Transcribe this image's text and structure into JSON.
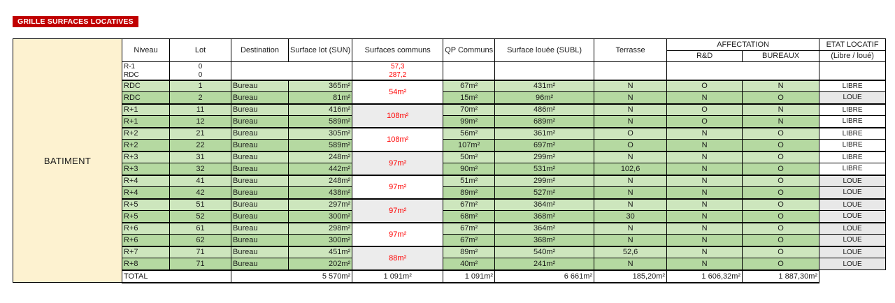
{
  "title": "GRILLE SURFACES LOCATIVES",
  "colors": {
    "accent_red": "#c00000",
    "value_red": "#ff0000",
    "row_green_light": "#cde6bd",
    "row_green_dark": "#b5d9a1",
    "batiment_beige": "#fdf2d0",
    "merged_gray": "#ececec",
    "loue_gray": "#e8e8e8",
    "border_black": "#000000"
  },
  "table": {
    "batiment_label": "BATIMENT",
    "headers": {
      "niveau": "Niveau",
      "lot": "Lot",
      "destination": "Destination",
      "surface_lot": "Surface lot\n(SUN)",
      "surfaces_communs": "Surfaces communs",
      "qp_communs": "QP\nCommuns",
      "surface_louee": "Surface louée\n(SUBL)",
      "terrasse": "Terrasse",
      "affectation": "AFFECTATION",
      "rd": "R&D",
      "bureaux": "BUREAUX",
      "etat_locatif": "ETAT LOCATIF",
      "etat_sub": "(Libre / loué)"
    },
    "pre_rows": [
      {
        "niveau": "R-1",
        "lot": "0",
        "communs": "57,3"
      },
      {
        "niveau": "RDC",
        "lot": "0",
        "communs": "287,2"
      }
    ],
    "communs_merged": [
      "54m²",
      "108m²",
      "108m²",
      "97m²",
      "97m²",
      "97m²",
      "97m²",
      "88m²"
    ],
    "rows": [
      {
        "niveau": "RDC",
        "lot": "1",
        "destination": "Bureau",
        "sun": "365m²",
        "qp": "67m²",
        "subl": "431m²",
        "terrasse": "N",
        "rd": "O",
        "bureaux": "N",
        "etat": "LIBRE"
      },
      {
        "niveau": "RDC",
        "lot": "2",
        "destination": "Bureau",
        "sun": "81m²",
        "qp": "15m²",
        "subl": "96m²",
        "terrasse": "N",
        "rd": "N",
        "bureaux": "O",
        "etat": "LOUE"
      },
      {
        "niveau": "R+1",
        "lot": "11",
        "destination": "Bureau",
        "sun": "416m²",
        "qp": "70m²",
        "subl": "486m²",
        "terrasse": "N",
        "rd": "O",
        "bureaux": "N",
        "etat": "LIBRE"
      },
      {
        "niveau": "R+1",
        "lot": "12",
        "destination": "Bureau",
        "sun": "589m²",
        "qp": "99m²",
        "subl": "689m²",
        "terrasse": "N",
        "rd": "O",
        "bureaux": "N",
        "etat": "LIBRE"
      },
      {
        "niveau": "R+2",
        "lot": "21",
        "destination": "Bureau",
        "sun": "305m²",
        "qp": "56m²",
        "subl": "361m²",
        "terrasse": "O",
        "rd": "N",
        "bureaux": "O",
        "etat": "LIBRE"
      },
      {
        "niveau": "R+2",
        "lot": "22",
        "destination": "Bureau",
        "sun": "589m²",
        "qp": "107m²",
        "subl": "697m²",
        "terrasse": "O",
        "rd": "N",
        "bureaux": "O",
        "etat": "LIBRE"
      },
      {
        "niveau": "R+3",
        "lot": "31",
        "destination": "Bureau",
        "sun": "248m²",
        "qp": "50m²",
        "subl": "299m²",
        "terrasse": "N",
        "rd": "N",
        "bureaux": "O",
        "etat": "LIBRE"
      },
      {
        "niveau": "R+3",
        "lot": "32",
        "destination": "Bureau",
        "sun": "442m²",
        "qp": "90m²",
        "subl": "531m²",
        "terrasse": "102,6",
        "rd": "N",
        "bureaux": "O",
        "etat": "LIBRE"
      },
      {
        "niveau": "R+4",
        "lot": "41",
        "destination": "Bureau",
        "sun": "248m²",
        "qp": "51m²",
        "subl": "299m²",
        "terrasse": "N",
        "rd": "N",
        "bureaux": "O",
        "etat": "LOUE"
      },
      {
        "niveau": "R+4",
        "lot": "42",
        "destination": "Bureau",
        "sun": "438m²",
        "qp": "89m²",
        "subl": "527m²",
        "terrasse": "N",
        "rd": "N",
        "bureaux": "O",
        "etat": "LOUE"
      },
      {
        "niveau": "R+5",
        "lot": "51",
        "destination": "Bureau",
        "sun": "297m²",
        "qp": "67m²",
        "subl": "364m²",
        "terrasse": "N",
        "rd": "N",
        "bureaux": "O",
        "etat": "LOUE"
      },
      {
        "niveau": "R+5",
        "lot": "52",
        "destination": "Bureau",
        "sun": "300m²",
        "qp": "68m²",
        "subl": "368m²",
        "terrasse": "30",
        "rd": "N",
        "bureaux": "O",
        "etat": "LOUE"
      },
      {
        "niveau": "R+6",
        "lot": "61",
        "destination": "Bureau",
        "sun": "298m²",
        "qp": "67m²",
        "subl": "364m²",
        "terrasse": "N",
        "rd": "N",
        "bureaux": "O",
        "etat": "LOUE"
      },
      {
        "niveau": "R+6",
        "lot": "62",
        "destination": "Bureau",
        "sun": "300m²",
        "qp": "67m²",
        "subl": "368m²",
        "terrasse": "N",
        "rd": "N",
        "bureaux": "O",
        "etat": "LOUE"
      },
      {
        "niveau": "R+7",
        "lot": "71",
        "destination": "Bureau",
        "sun": "451m²",
        "qp": "89m²",
        "subl": "540m²",
        "terrasse": "52,6",
        "rd": "N",
        "bureaux": "O",
        "etat": "LOUE"
      },
      {
        "niveau": "R+8",
        "lot": "71",
        "destination": "Bureau",
        "sun": "202m²",
        "qp": "40m²",
        "subl": "241m²",
        "terrasse": "N",
        "rd": "N",
        "bureaux": "O",
        "etat": "LOUE"
      }
    ],
    "total": {
      "label": "TOTAL",
      "sun": "5 570m²",
      "communs": "1 091m²",
      "qp": "1 091m²",
      "subl": "6 661m²",
      "terrasse": "185,20m²",
      "rd": "1 606,32m²",
      "bureaux": "1 887,30m²"
    }
  }
}
